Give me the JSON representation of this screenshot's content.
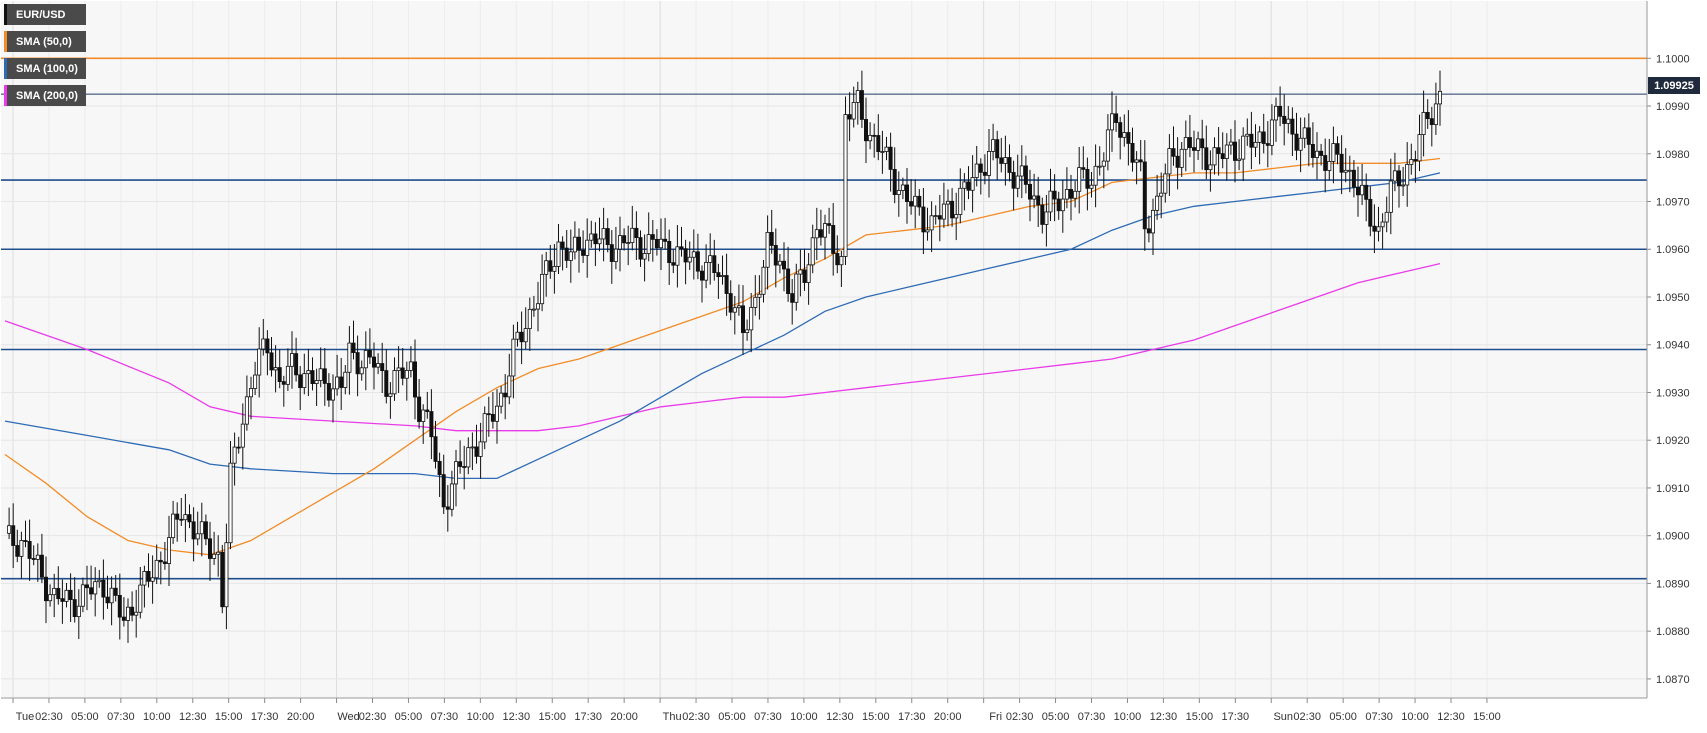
{
  "chart_data": {
    "type": "candlestick",
    "symbol": "EUR/USD",
    "current_price": "1.09925",
    "y_axis": {
      "range": [
        1.0866,
        1.1012
      ],
      "ticks": [
        "1.0870",
        "1.0880",
        "1.0890",
        "1.0900",
        "1.0910",
        "1.0920",
        "1.0930",
        "1.0940",
        "1.0950",
        "1.0960",
        "1.0970",
        "1.0980",
        "1.0990",
        "1.1000"
      ]
    },
    "x_axis": {
      "tick_labels": [
        "Tue",
        "02:30",
        "05:00",
        "07:30",
        "10:00",
        "12:30",
        "15:00",
        "17:30",
        "20:00",
        "Wed",
        "02:30",
        "05:00",
        "07:30",
        "10:00",
        "12:30",
        "15:00",
        "17:30",
        "20:00",
        "Thu",
        "02:30",
        "05:00",
        "07:30",
        "10:00",
        "12:30",
        "15:00",
        "17:30",
        "20:00",
        "Fri",
        "02:30",
        "05:00",
        "07:30",
        "10:00",
        "12:30",
        "15:00",
        "17:30",
        "Sun",
        "02:30",
        "05:00",
        "07:30",
        "10:00",
        "12:30",
        "15:00"
      ]
    },
    "grid": true,
    "legend": [
      {
        "label": "EUR/USD",
        "color": "#222222"
      },
      {
        "label": "SMA (50,0)",
        "color": "#f28c28"
      },
      {
        "label": "SMA (100,0)",
        "color": "#2e6bb5"
      },
      {
        "label": "SMA (200,0)",
        "color": "#e93be9"
      }
    ],
    "horizontal_levels": [
      {
        "value": 1.1,
        "color": "#f28c28"
      },
      {
        "value": 1.09925,
        "color": "#1f3a5f"
      },
      {
        "value": 1.09745,
        "color": "#1f4e8c"
      },
      {
        "value": 1.096,
        "color": "#1f4e8c"
      },
      {
        "value": 1.0939,
        "color": "#1f4e8c"
      },
      {
        "value": 1.0891,
        "color": "#1f4e8c"
      }
    ],
    "close_path": [
      [
        0,
        1.0899
      ],
      [
        4,
        1.0899
      ],
      [
        8,
        1.0893
      ],
      [
        12,
        1.0887
      ],
      [
        16,
        1.0886
      ],
      [
        20,
        1.0888
      ],
      [
        24,
        1.089
      ],
      [
        26,
        1.0887
      ],
      [
        29,
        1.0882
      ],
      [
        32,
        1.0887
      ],
      [
        36,
        1.0892
      ],
      [
        40,
        1.0899
      ],
      [
        43,
        1.0905
      ],
      [
        46,
        1.0902
      ],
      [
        49,
        1.0898
      ],
      [
        52,
        1.0896
      ],
      [
        53,
        1.0887
      ],
      [
        55,
        1.0912
      ],
      [
        58,
        1.0925
      ],
      [
        61,
        1.0935
      ],
      [
        64,
        1.094
      ],
      [
        67,
        1.0932
      ],
      [
        70,
        1.0935
      ],
      [
        73,
        1.0934
      ],
      [
        76,
        1.0932
      ],
      [
        79,
        1.0932
      ],
      [
        82,
        1.0931
      ],
      [
        84,
        1.0938
      ],
      [
        87,
        1.0937
      ],
      [
        90,
        1.0936
      ],
      [
        93,
        1.0932
      ],
      [
        96,
        1.0933
      ],
      [
        99,
        1.0935
      ],
      [
        101,
        1.0927
      ],
      [
        104,
        1.0921
      ],
      [
        107,
        1.0907
      ],
      [
        110,
        1.0912
      ],
      [
        113,
        1.0918
      ],
      [
        116,
        1.092
      ],
      [
        119,
        1.0926
      ],
      [
        122,
        1.0931
      ],
      [
        124,
        1.0938
      ],
      [
        127,
        1.0945
      ],
      [
        130,
        1.095
      ],
      [
        133,
        1.0957
      ],
      [
        135,
        1.0961
      ],
      [
        138,
        1.0958
      ],
      [
        141,
        1.0962
      ],
      [
        144,
        1.0962
      ],
      [
        147,
        1.0961
      ],
      [
        150,
        1.0961
      ],
      [
        153,
        1.0962
      ],
      [
        156,
        1.0961
      ],
      [
        159,
        1.0961
      ],
      [
        162,
        1.096
      ],
      [
        165,
        1.0958
      ],
      [
        168,
        1.0958
      ],
      [
        171,
        1.0956
      ],
      [
        174,
        1.0955
      ],
      [
        177,
        1.095
      ],
      [
        180,
        1.0942
      ],
      [
        183,
        1.095
      ],
      [
        186,
        1.096
      ],
      [
        189,
        1.0958
      ],
      [
        192,
        1.095
      ],
      [
        195,
        1.0955
      ],
      [
        198,
        1.0965
      ],
      [
        201,
        1.0962
      ],
      [
        204,
        1.0958
      ],
      [
        205,
        1.0988
      ],
      [
        208,
        1.099
      ],
      [
        211,
        1.0984
      ],
      [
        214,
        1.098
      ],
      [
        217,
        1.0975
      ],
      [
        220,
        1.097
      ],
      [
        223,
        1.0968
      ],
      [
        226,
        1.0965
      ],
      [
        229,
        1.0968
      ],
      [
        232,
        1.097
      ],
      [
        235,
        1.0973
      ],
      [
        238,
        1.0978
      ],
      [
        241,
        1.098
      ],
      [
        244,
        1.0978
      ],
      [
        247,
        1.0975
      ],
      [
        250,
        1.0972
      ],
      [
        253,
        1.0968
      ],
      [
        256,
        1.0969
      ],
      [
        259,
        1.0972
      ],
      [
        262,
        1.0974
      ],
      [
        265,
        1.0975
      ],
      [
        268,
        1.098
      ],
      [
        271,
        1.0988
      ],
      [
        274,
        1.0982
      ],
      [
        277,
        1.0975
      ],
      [
        278,
        1.0965
      ],
      [
        281,
        1.097
      ],
      [
        284,
        1.0978
      ],
      [
        287,
        1.0982
      ],
      [
        290,
        1.0981
      ],
      [
        293,
        1.098
      ],
      [
        296,
        1.0979
      ],
      [
        299,
        1.0981
      ],
      [
        302,
        1.0982
      ],
      [
        305,
        1.0982
      ],
      [
        308,
        1.0985
      ],
      [
        311,
        1.0988
      ],
      [
        314,
        1.0985
      ],
      [
        317,
        1.0982
      ],
      [
        320,
        1.098
      ],
      [
        323,
        1.0979
      ],
      [
        326,
        1.0978
      ],
      [
        329,
        1.0975
      ],
      [
        332,
        1.0968
      ],
      [
        335,
        1.0964
      ],
      [
        338,
        1.0972
      ],
      [
        341,
        1.0976
      ],
      [
        344,
        1.098
      ],
      [
        347,
        1.0988
      ],
      [
        350,
        1.0992
      ]
    ],
    "sma_50": [
      [
        0,
        1.0917
      ],
      [
        10,
        1.0911
      ],
      [
        20,
        1.0904
      ],
      [
        30,
        1.0899
      ],
      [
        40,
        1.0897
      ],
      [
        50,
        1.0896
      ],
      [
        60,
        1.0899
      ],
      [
        70,
        1.0904
      ],
      [
        80,
        1.0909
      ],
      [
        90,
        1.0914
      ],
      [
        100,
        1.092
      ],
      [
        110,
        1.0926
      ],
      [
        120,
        1.0931
      ],
      [
        130,
        1.0935
      ],
      [
        140,
        1.0937
      ],
      [
        150,
        1.094
      ],
      [
        160,
        1.0943
      ],
      [
        170,
        1.0946
      ],
      [
        180,
        1.0949
      ],
      [
        190,
        1.0954
      ],
      [
        200,
        1.0958
      ],
      [
        210,
        1.0963
      ],
      [
        220,
        1.0964
      ],
      [
        230,
        1.0965
      ],
      [
        240,
        1.0967
      ],
      [
        250,
        1.0969
      ],
      [
        260,
        1.097
      ],
      [
        270,
        1.0974
      ],
      [
        280,
        1.0975
      ],
      [
        290,
        1.0976
      ],
      [
        300,
        1.0976
      ],
      [
        310,
        1.0977
      ],
      [
        320,
        1.0978
      ],
      [
        330,
        1.0978
      ],
      [
        340,
        1.0978
      ],
      [
        350,
        1.0979
      ]
    ],
    "sma_100": [
      [
        0,
        1.0924
      ],
      [
        20,
        1.0921
      ],
      [
        40,
        1.0918
      ],
      [
        50,
        1.0915
      ],
      [
        60,
        1.0914
      ],
      [
        80,
        1.0913
      ],
      [
        100,
        1.0913
      ],
      [
        110,
        1.0912
      ],
      [
        120,
        1.0912
      ],
      [
        130,
        1.0916
      ],
      [
        140,
        1.092
      ],
      [
        150,
        1.0924
      ],
      [
        160,
        1.0929
      ],
      [
        170,
        1.0934
      ],
      [
        180,
        1.0938
      ],
      [
        190,
        1.0942
      ],
      [
        200,
        1.0947
      ],
      [
        210,
        1.095
      ],
      [
        220,
        1.0952
      ],
      [
        230,
        1.0954
      ],
      [
        240,
        1.0956
      ],
      [
        250,
        1.0958
      ],
      [
        260,
        1.096
      ],
      [
        270,
        1.0964
      ],
      [
        280,
        1.0967
      ],
      [
        290,
        1.0969
      ],
      [
        300,
        1.097
      ],
      [
        310,
        1.0971
      ],
      [
        320,
        1.0972
      ],
      [
        330,
        1.0973
      ],
      [
        340,
        1.0974
      ],
      [
        350,
        1.0976
      ]
    ],
    "sma_200": [
      [
        0,
        1.0945
      ],
      [
        20,
        1.0939
      ],
      [
        40,
        1.0932
      ],
      [
        50,
        1.0927
      ],
      [
        60,
        1.0925
      ],
      [
        80,
        1.0924
      ],
      [
        100,
        1.0923
      ],
      [
        110,
        1.0922
      ],
      [
        120,
        1.0922
      ],
      [
        130,
        1.0922
      ],
      [
        140,
        1.0923
      ],
      [
        150,
        1.0925
      ],
      [
        160,
        1.0927
      ],
      [
        170,
        1.0928
      ],
      [
        180,
        1.0929
      ],
      [
        190,
        1.0929
      ],
      [
        200,
        1.093
      ],
      [
        210,
        1.0931
      ],
      [
        220,
        1.0932
      ],
      [
        230,
        1.0933
      ],
      [
        240,
        1.0934
      ],
      [
        250,
        1.0935
      ],
      [
        260,
        1.0936
      ],
      [
        270,
        1.0937
      ],
      [
        280,
        1.0939
      ],
      [
        290,
        1.0941
      ],
      [
        300,
        1.0944
      ],
      [
        310,
        1.0947
      ],
      [
        320,
        1.095
      ],
      [
        330,
        1.0953
      ],
      [
        340,
        1.0955
      ],
      [
        350,
        1.0957
      ]
    ]
  }
}
